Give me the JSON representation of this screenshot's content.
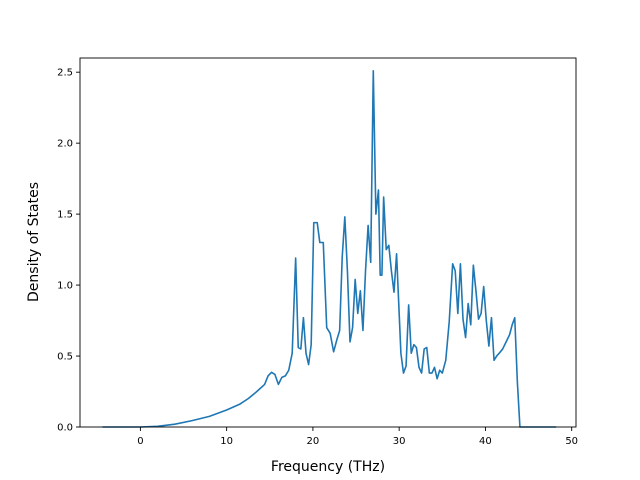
{
  "chart_data": {
    "type": "line",
    "title": "",
    "xlabel": "Frequency (THz)",
    "ylabel": "Density of States",
    "xlim": [
      -7.0,
      50.5
    ],
    "ylim": [
      0.0,
      2.6
    ],
    "xticks": [
      0,
      10,
      20,
      30,
      40,
      50
    ],
    "yticks": [
      0.0,
      0.5,
      1.0,
      1.5,
      2.0,
      2.5
    ],
    "xtick_labels": [
      "0",
      "10",
      "20",
      "30",
      "40",
      "50"
    ],
    "ytick_labels": [
      "0.0",
      "0.5",
      "1.0",
      "1.5",
      "2.0",
      "2.5"
    ],
    "grid": false,
    "legend": "none",
    "colors": {
      "line": "#1f77b4"
    },
    "series": [
      {
        "x": [
          -4.4,
          0.0,
          2.0,
          4.0,
          6.0,
          8.0,
          10.0,
          11.5,
          12.5,
          13.5,
          14.4,
          14.8,
          15.2,
          15.6,
          16.0,
          16.4,
          16.8,
          17.2,
          17.6,
          18.0,
          18.3,
          18.6,
          18.9,
          19.2,
          19.5,
          19.8,
          20.1,
          20.5,
          20.8,
          21.2,
          21.6,
          22.0,
          22.4,
          22.8,
          23.1,
          23.4,
          23.7,
          24.0,
          24.3,
          24.6,
          24.9,
          25.2,
          25.5,
          25.8,
          26.1,
          26.4,
          26.7,
          27.0,
          27.3,
          27.6,
          27.8,
          28.0,
          28.2,
          28.5,
          28.8,
          29.1,
          29.4,
          29.7,
          30.0,
          30.2,
          30.5,
          30.8,
          31.1,
          31.4,
          31.7,
          32.0,
          32.3,
          32.6,
          32.9,
          33.2,
          33.5,
          33.8,
          34.1,
          34.4,
          34.7,
          35.0,
          35.4,
          35.8,
          36.2,
          36.5,
          36.8,
          37.1,
          37.4,
          37.7,
          38.0,
          38.3,
          38.6,
          38.9,
          39.2,
          39.5,
          39.8,
          40.1,
          40.4,
          40.7,
          41.0,
          41.3,
          41.6,
          42.0,
          42.4,
          42.8,
          43.1,
          43.4,
          43.7,
          44.0,
          44.2,
          48.2
        ],
        "y": [
          0.0,
          0.0,
          0.005,
          0.02,
          0.045,
          0.075,
          0.12,
          0.16,
          0.2,
          0.25,
          0.3,
          0.36,
          0.385,
          0.37,
          0.3,
          0.35,
          0.36,
          0.4,
          0.52,
          1.19,
          0.56,
          0.55,
          0.77,
          0.52,
          0.44,
          0.58,
          1.44,
          1.44,
          1.3,
          1.3,
          0.7,
          0.66,
          0.53,
          0.62,
          0.68,
          1.2,
          1.48,
          1.1,
          0.6,
          0.7,
          1.04,
          0.8,
          0.96,
          0.68,
          1.1,
          1.42,
          1.16,
          2.51,
          1.5,
          1.67,
          1.07,
          1.07,
          1.62,
          1.25,
          1.28,
          1.1,
          0.95,
          1.22,
          0.8,
          0.52,
          0.38,
          0.43,
          0.86,
          0.52,
          0.58,
          0.56,
          0.42,
          0.38,
          0.55,
          0.56,
          0.38,
          0.38,
          0.42,
          0.34,
          0.4,
          0.38,
          0.47,
          0.74,
          1.15,
          1.1,
          0.8,
          1.15,
          0.76,
          0.63,
          0.87,
          0.72,
          1.14,
          0.96,
          0.76,
          0.8,
          0.99,
          0.75,
          0.57,
          0.77,
          0.47,
          0.5,
          0.52,
          0.55,
          0.6,
          0.65,
          0.72,
          0.77,
          0.32,
          0.0,
          0.0,
          0.0
        ]
      }
    ]
  }
}
